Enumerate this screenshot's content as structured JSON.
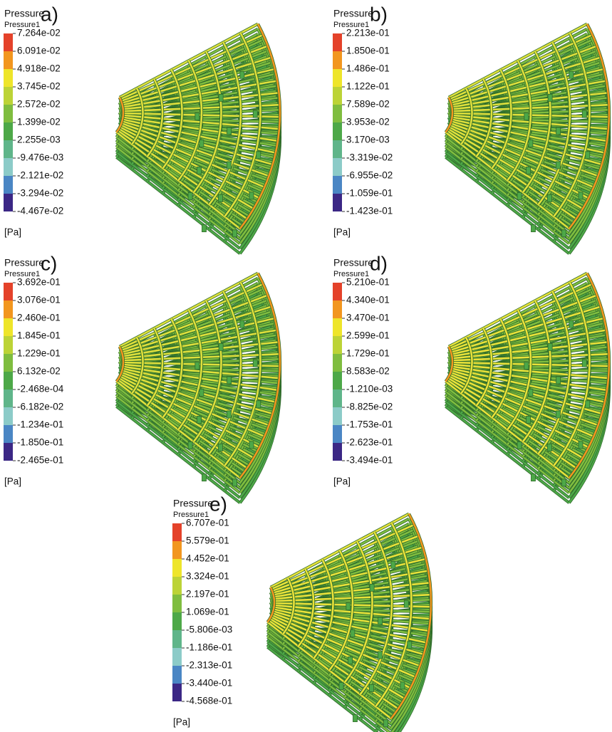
{
  "legend_colors": [
    "#e4422a",
    "#f2961f",
    "#eee52a",
    "#bcd336",
    "#7fbd3f",
    "#4da848",
    "#5fb58a",
    "#8ccbc8",
    "#4a86c4",
    "#3b2785"
  ],
  "panels": [
    {
      "label": "a)",
      "title": "Pressure",
      "subtitle": "Pressure1",
      "unit": "[Pa]",
      "levels": [
        "7.264e-02",
        "6.091e-02",
        "4.918e-02",
        "3.745e-02",
        "2.572e-02",
        "1.399e-02",
        "2.255e-03",
        "-9.476e-03",
        "-2.121e-02",
        "-3.294e-02",
        "-4.467e-02"
      ]
    },
    {
      "label": "b)",
      "title": "Pressure",
      "subtitle": "Pressure1",
      "unit": "[Pa]",
      "levels": [
        "2.213e-01",
        "1.850e-01",
        "1.486e-01",
        "1.122e-01",
        "7.589e-02",
        "3.953e-02",
        "3.170e-03",
        "-3.319e-02",
        "-6.955e-02",
        "-1.059e-01",
        "-1.423e-01"
      ]
    },
    {
      "label": "c)",
      "title": "Pressure",
      "subtitle": "Pressure1",
      "unit": "[Pa]",
      "levels": [
        "3.692e-01",
        "3.076e-01",
        "2.460e-01",
        "1.845e-01",
        "1.229e-01",
        "6.132e-02",
        "-2.468e-04",
        "-6.182e-02",
        "-1.234e-01",
        "-1.850e-01",
        "-2.465e-01"
      ]
    },
    {
      "label": "d)",
      "title": "Pressure",
      "subtitle": "Pressure1",
      "unit": "[Pa]",
      "levels": [
        "5.210e-01",
        "4.340e-01",
        "3.470e-01",
        "2.599e-01",
        "1.729e-01",
        "8.583e-02",
        "-1.210e-03",
        "-8.825e-02",
        "-1.753e-01",
        "-2.623e-01",
        "-3.494e-01"
      ]
    },
    {
      "label": "e)",
      "title": "Pressure",
      "subtitle": "Pressure1",
      "unit": "[Pa]",
      "levels": [
        "6.707e-01",
        "5.579e-01",
        "4.452e-01",
        "3.324e-01",
        "2.197e-01",
        "1.069e-01",
        "-5.806e-03",
        "-1.186e-01",
        "-2.313e-01",
        "-3.440e-01",
        "-4.568e-01"
      ]
    }
  ]
}
